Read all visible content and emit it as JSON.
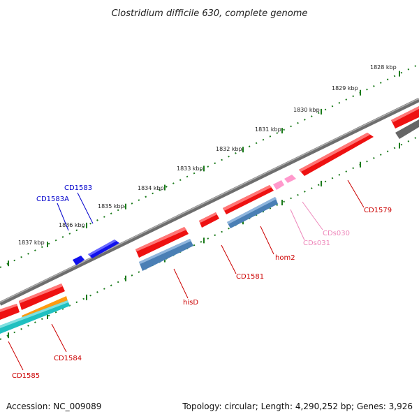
{
  "title": "Clostridium difficile 630, complete genome",
  "footer": {
    "accession": "Accession: NC_009089",
    "topology": "Topology: circular; Length: 4,290,252 bp; Genes: 3,926"
  },
  "ticks": [
    "1828 kbp",
    "1829 kbp",
    "1830 kbp",
    "1831 kbp",
    "1832 kbp",
    "1833 kbp",
    "1834 kbp",
    "1835 kbp",
    "1836 kbp",
    "1837 kbp"
  ],
  "colors": {
    "backbone": "#808080",
    "forward_cds": "#ee1111",
    "reverse_cds": "#4a7fb5",
    "forward_small": "#1010ee",
    "rna": "#ff99cc",
    "teal": "#20c0c0",
    "orange": "#ff9a10",
    "grey_cds": "#666666",
    "tick": "#1a7a1a"
  },
  "genes": [
    {
      "name": "CD1583",
      "color": "#0000cc"
    },
    {
      "name": "CD1583A",
      "color": "#0000cc"
    },
    {
      "name": "CD1579",
      "color": "#cc0000"
    },
    {
      "name": "CDs030",
      "color": "#ee88bb"
    },
    {
      "name": "CDs031",
      "color": "#ee88bb"
    },
    {
      "name": "hom2",
      "color": "#cc0000"
    },
    {
      "name": "CD1581",
      "color": "#cc0000"
    },
    {
      "name": "hisD",
      "color": "#cc0000"
    },
    {
      "name": "CD1584",
      "color": "#cc0000"
    },
    {
      "name": "CD1585",
      "color": "#cc0000"
    }
  ]
}
